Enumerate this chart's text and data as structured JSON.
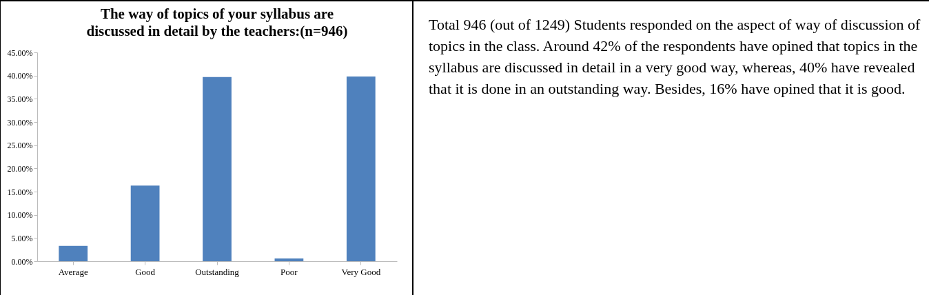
{
  "chart_data": {
    "type": "bar",
    "title": "The way of topics of your syllabus are\ndiscussed in detail by the teachers:(n=946)",
    "categories": [
      "Average",
      "Good",
      "Outstanding",
      "Poor",
      "Very Good"
    ],
    "values": [
      3.3,
      16.3,
      39.7,
      0.6,
      39.8
    ],
    "color": "#4f81bd",
    "ylim": [
      0,
      45
    ],
    "yticks": [
      {
        "value": 0,
        "label": "0.00%"
      },
      {
        "value": 5,
        "label": "5.00%"
      },
      {
        "value": 10,
        "label": "10.00%"
      },
      {
        "value": 15,
        "label": "15.00%"
      },
      {
        "value": 20,
        "label": "20.00%"
      },
      {
        "value": 25,
        "label": "25.00%"
      },
      {
        "value": 30,
        "label": "30.00%"
      },
      {
        "value": 35,
        "label": "35.00%"
      },
      {
        "value": 40,
        "label": "40.00%"
      },
      {
        "value": 45,
        "label": "45.00%"
      }
    ],
    "grid": false,
    "annotations": [
      "Total 946 (out of 1249) Students responded on the aspect of way of discussion of topics in the class. Around 42% of the respondents have opined that topics in the syllabus are discussed in detail in a very good way, whereas, 40% have revealed that it is done in an outstanding way. Besides, 16%  have opined that it is good."
    ]
  }
}
